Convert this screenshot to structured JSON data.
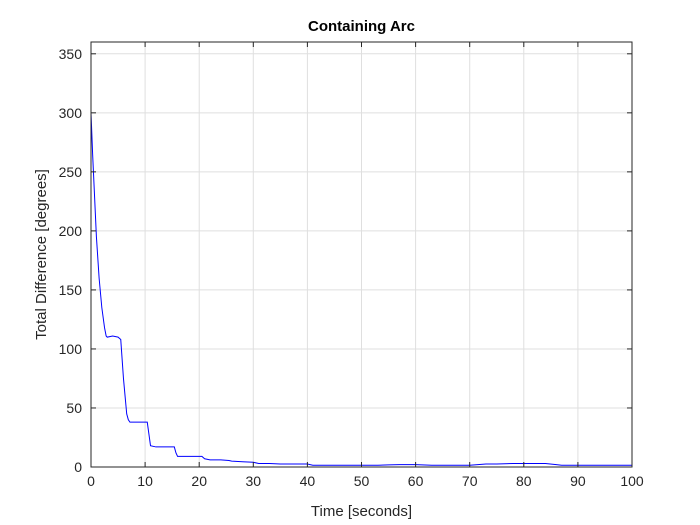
{
  "chart_data": {
    "type": "line",
    "title": "Containing Arc",
    "xlabel": "Time [seconds]",
    "ylabel": "Total Difference [degrees]",
    "xlim": [
      0,
      100
    ],
    "ylim": [
      0,
      360
    ],
    "xticks": [
      0,
      10,
      20,
      30,
      40,
      50,
      60,
      70,
      80,
      90,
      100
    ],
    "yticks": [
      0,
      50,
      100,
      150,
      200,
      250,
      300,
      350
    ],
    "grid": true,
    "line_color": "#0000ff",
    "series": [
      {
        "x": [
          0,
          0.3,
          0.6,
          1,
          1.5,
          2,
          2.5,
          2.8,
          3,
          4,
          5,
          5.5,
          6,
          6.3,
          6.6,
          6.9,
          7.2,
          8,
          9,
          10.4,
          10.7,
          11,
          12,
          13,
          14,
          15.4,
          15.7,
          16,
          17.5,
          19,
          20.5,
          21,
          22,
          23,
          24,
          25.5,
          26,
          28,
          30,
          31,
          33,
          35,
          37,
          40,
          41,
          43,
          45,
          47,
          50,
          53,
          55,
          57,
          60,
          63,
          65,
          70,
          73,
          75,
          78,
          80,
          82,
          84,
          86,
          87,
          88,
          90,
          95,
          100
        ],
        "y": [
          300,
          265,
          235,
          195,
          160,
          135,
          118,
          111,
          110,
          111,
          110,
          108,
          75,
          60,
          45,
          40,
          38,
          38,
          38,
          38,
          28,
          18,
          17,
          17,
          17,
          17,
          12,
          9,
          9,
          9,
          9,
          7,
          6,
          6,
          6,
          5.5,
          5,
          4.5,
          4,
          3,
          3,
          2.5,
          2.5,
          2.5,
          1.5,
          1.5,
          1.5,
          1.5,
          1.5,
          1.5,
          1.8,
          2,
          2,
          1.5,
          1.5,
          1.5,
          2.5,
          2.5,
          3,
          3,
          3,
          3,
          2,
          1.5,
          1.5,
          1.5,
          1.5,
          1.5
        ]
      }
    ]
  }
}
